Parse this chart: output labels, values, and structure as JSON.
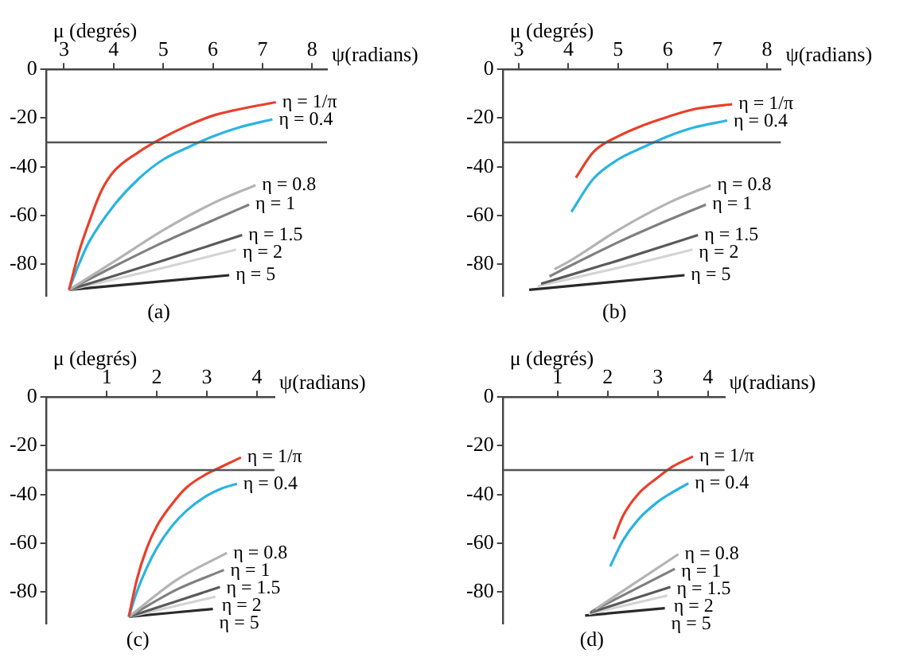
{
  "chart_data": [
    {
      "type": "line",
      "xlabel": "ψ(radians)",
      "ylabel": "μ (degrés)",
      "xlim": [
        2.65,
        8.3
      ],
      "xticks": [
        3,
        4,
        5,
        6,
        7,
        8
      ],
      "ylim": [
        -93,
        0
      ],
      "yticks": [
        0,
        -20,
        -40,
        -60,
        -80
      ],
      "grid": false,
      "annotations": [
        "(a)"
      ],
      "ref_lines": [
        {
          "axis": "y",
          "value": -30,
          "color": "#555555"
        }
      ],
      "series": [
        {
          "name": "η = 1/π",
          "color": "#e8402a",
          "x": [
            3.1,
            3.3,
            3.5,
            3.75,
            4,
            4.5,
            5,
            5.5,
            6,
            6.5,
            7.27
          ],
          "values": [
            -90.5,
            -75,
            -63,
            -50,
            -42,
            -34,
            -28,
            -23,
            -19,
            -16.5,
            -13.5
          ]
        },
        {
          "name": "η = 0.4",
          "color": "#2ab4e0",
          "x": [
            3.1,
            3.3,
            3.5,
            4,
            4.5,
            5,
            5.5,
            6,
            6.5,
            7.2
          ],
          "values": [
            -90.5,
            -80,
            -71,
            -56,
            -45,
            -37,
            -32,
            -27.5,
            -24,
            -20.5
          ]
        },
        {
          "name": "η = 0.8",
          "color": "#b4b4b4",
          "x": [
            3.1,
            4,
            5,
            6,
            6.86
          ],
          "values": [
            -90.5,
            -79,
            -66,
            -55,
            -47.5
          ]
        },
        {
          "name": "η = 1",
          "color": "#808080",
          "x": [
            3.1,
            4,
            5,
            6,
            6.73
          ],
          "values": [
            -90.5,
            -81,
            -71,
            -62,
            -55.5
          ]
        },
        {
          "name": "η = 1.5",
          "color": "#5a5a5a",
          "x": [
            3.1,
            5,
            6.59
          ],
          "values": [
            -90.5,
            -78.5,
            -68
          ]
        },
        {
          "name": "η = 2",
          "color": "#d4d4d4",
          "x": [
            3.1,
            5,
            6.47
          ],
          "values": [
            -90.5,
            -81.5,
            -74
          ]
        },
        {
          "name": "η = 5",
          "color": "#2a2a2a",
          "x": [
            3.1,
            6.33
          ],
          "values": [
            -90.5,
            -84.5
          ]
        }
      ]
    },
    {
      "type": "line",
      "xlabel": "ψ(radians)",
      "ylabel": "μ (degrés)",
      "xlim": [
        2.69,
        8.28
      ],
      "xticks": [
        3,
        4,
        5,
        6,
        7,
        8
      ],
      "ylim": [
        -93,
        0
      ],
      "yticks": [
        0,
        -20,
        -40,
        -60,
        -80
      ],
      "grid": false,
      "annotations": [
        "(b)"
      ],
      "ref_lines": [
        {
          "axis": "y",
          "value": -30,
          "color": "#555555"
        }
      ],
      "series": [
        {
          "name": "η = 1/π",
          "color": "#e8402a",
          "x": [
            4.15,
            4.5,
            5,
            5.5,
            6,
            6.5,
            7.3
          ],
          "values": [
            -44.5,
            -34,
            -27.5,
            -23,
            -19.5,
            -16.5,
            -14.3
          ]
        },
        {
          "name": "η = 0.4",
          "color": "#2ab4e0",
          "x": [
            4.06,
            4.5,
            5,
            5.5,
            6,
            6.5,
            7.2
          ],
          "values": [
            -58.5,
            -45,
            -37,
            -32,
            -27.5,
            -24,
            -21
          ]
        },
        {
          "name": "η = 0.8",
          "color": "#b4b4b4",
          "x": [
            3.72,
            4,
            5,
            6,
            6.87
          ],
          "values": [
            -82,
            -79,
            -66,
            -55,
            -47.5
          ]
        },
        {
          "name": "η = 1",
          "color": "#808080",
          "x": [
            3.62,
            4,
            5,
            6,
            6.77
          ],
          "values": [
            -85,
            -81,
            -71,
            -62,
            -55.5
          ]
        },
        {
          "name": "η = 1.5",
          "color": "#5a5a5a",
          "x": [
            3.45,
            5,
            6.61
          ],
          "values": [
            -88,
            -78.5,
            -68
          ]
        },
        {
          "name": "η = 2",
          "color": "#d4d4d4",
          "x": [
            3.38,
            5,
            6.5
          ],
          "values": [
            -89,
            -81.5,
            -74
          ]
        },
        {
          "name": "η = 5",
          "color": "#2a2a2a",
          "x": [
            3.21,
            6.34
          ],
          "values": [
            -90.5,
            -84.5
          ]
        }
      ]
    },
    {
      "type": "line",
      "xlabel": "ψ(radians)",
      "ylabel": "μ (degrés)",
      "xlim": [
        -0.2,
        4.35
      ],
      "xticks": [
        1,
        2,
        3,
        4
      ],
      "ylim": [
        -93,
        0
      ],
      "yticks": [
        0,
        -20,
        -40,
        -60,
        -80
      ],
      "grid": false,
      "annotations": [
        "(c)"
      ],
      "ref_lines": [
        {
          "axis": "y",
          "value": -30,
          "color": "#555555"
        }
      ],
      "series": [
        {
          "name": "η = 1/π",
          "color": "#e8402a",
          "x": [
            1.44,
            1.6,
            1.8,
            2,
            2.3,
            2.6,
            3,
            3.3,
            3.68
          ],
          "values": [
            -90.2,
            -75,
            -62,
            -53,
            -44,
            -37,
            -31.5,
            -28.5,
            -24.8
          ]
        },
        {
          "name": "η = 0.4",
          "color": "#2ab4e0",
          "x": [
            1.44,
            1.6,
            1.8,
            2,
            2.3,
            2.6,
            3,
            3.3,
            3.6
          ],
          "values": [
            -90.2,
            -80,
            -70,
            -62,
            -53,
            -46.5,
            -40.5,
            -37.5,
            -35.6
          ]
        },
        {
          "name": "η = 0.8",
          "color": "#b4b4b4",
          "x": [
            1.44,
            2.4,
            3.4
          ],
          "values": [
            -90.2,
            -75,
            -64
          ]
        },
        {
          "name": "η = 1",
          "color": "#808080",
          "x": [
            1.44,
            2.4,
            3.34
          ],
          "values": [
            -90.2,
            -79,
            -71
          ]
        },
        {
          "name": "η = 1.5",
          "color": "#5a5a5a",
          "x": [
            1.44,
            3.26
          ],
          "values": [
            -90.2,
            -78
          ]
        },
        {
          "name": "η = 2",
          "color": "#d4d4d4",
          "x": [
            1.44,
            3.17
          ],
          "values": [
            -90.2,
            -82
          ]
        },
        {
          "name": "η = 5",
          "color": "#2a2a2a",
          "x": [
            1.44,
            3.12
          ],
          "values": [
            -90.2,
            -87
          ]
        }
      ]
    },
    {
      "type": "line",
      "xlabel": "ψ(radians)",
      "ylabel": "μ (degrés)",
      "xlim": [
        -0.08,
        4.33
      ],
      "xticks": [
        1,
        2,
        3,
        4
      ],
      "ylim": [
        -93,
        0
      ],
      "yticks": [
        0,
        -20,
        -40,
        -60,
        -80
      ],
      "grid": false,
      "annotations": [
        "(d)"
      ],
      "ref_lines": [
        {
          "axis": "y",
          "value": -30,
          "color": "#555555"
        }
      ],
      "series": [
        {
          "name": "η = 1/π",
          "color": "#e8402a",
          "x": [
            2.12,
            2.3,
            2.6,
            3,
            3.3,
            3.7
          ],
          "values": [
            -58.3,
            -49,
            -40,
            -33,
            -28.5,
            -24.4
          ]
        },
        {
          "name": "η = 0.4",
          "color": "#2ab4e0",
          "x": [
            2.05,
            2.3,
            2.6,
            3,
            3.3,
            3.61
          ],
          "values": [
            -69.5,
            -59,
            -50.5,
            -43,
            -39,
            -35.4
          ]
        },
        {
          "name": "η = 0.8",
          "color": "#b4b4b4",
          "x": [
            1.76,
            3.41
          ],
          "values": [
            -87,
            -64.5
          ]
        },
        {
          "name": "η = 1",
          "color": "#808080",
          "x": [
            1.68,
            3.34
          ],
          "values": [
            -88,
            -70.5
          ]
        },
        {
          "name": "η = 1.5",
          "color": "#5a5a5a",
          "x": [
            1.65,
            3.25
          ],
          "values": [
            -88.5,
            -78
          ]
        },
        {
          "name": "η = 2",
          "color": "#d4d4d4",
          "x": [
            1.62,
            3.19
          ],
          "values": [
            -89,
            -81.5
          ]
        },
        {
          "name": "η = 5",
          "color": "#2a2a2a",
          "x": [
            1.55,
            3.14
          ],
          "values": [
            -89.7,
            -86.7
          ]
        }
      ]
    }
  ]
}
